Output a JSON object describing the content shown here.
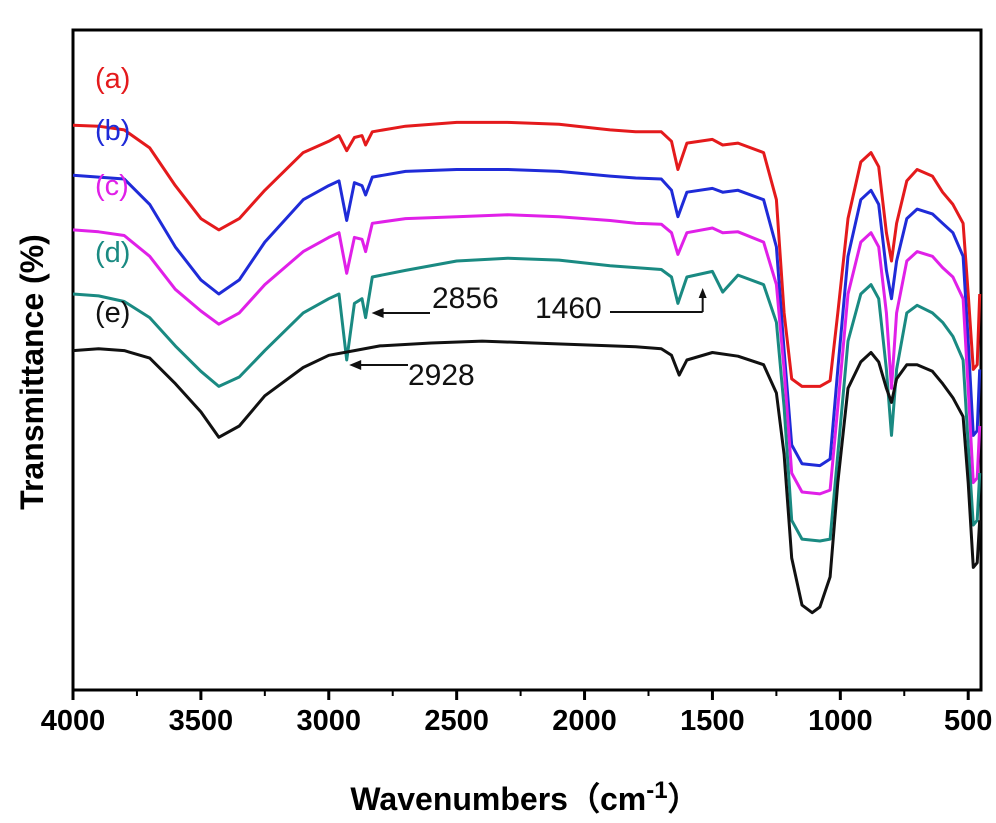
{
  "chart_data": {
    "type": "line",
    "title": "",
    "xlabel": "Wavenumbers",
    "xlabel_unit_base": "（cm",
    "xlabel_unit_exp": "-1",
    "xlabel_unit_close": "）",
    "ylabel": "Transmittance (%)",
    "xlim": [
      4000,
      450
    ],
    "x_reversed": true,
    "y_ticks_shown": false,
    "grid": false,
    "x_ticks": [
      {
        "value": 4000,
        "label": "4000"
      },
      {
        "value": 3500,
        "label": "3500"
      },
      {
        "value": 3000,
        "label": "3000"
      },
      {
        "value": 2500,
        "label": "2500"
      },
      {
        "value": 2000,
        "label": "2000"
      },
      {
        "value": 1500,
        "label": "1500"
      },
      {
        "value": 1000,
        "label": "1000"
      },
      {
        "value": 500,
        "label": "500"
      }
    ],
    "series": [
      {
        "name": "(a)",
        "color": "#e41a1c",
        "points": [
          [
            4000,
            101
          ],
          [
            3900,
            102
          ],
          [
            3800,
            106
          ],
          [
            3700,
            125
          ],
          [
            3600,
            165
          ],
          [
            3500,
            200
          ],
          [
            3430,
            212
          ],
          [
            3350,
            200
          ],
          [
            3250,
            170
          ],
          [
            3100,
            130
          ],
          [
            3000,
            118
          ],
          [
            2960,
            112
          ],
          [
            2930,
            128
          ],
          [
            2900,
            114
          ],
          [
            2870,
            112
          ],
          [
            2856,
            122
          ],
          [
            2830,
            108
          ],
          [
            2700,
            102
          ],
          [
            2500,
            98
          ],
          [
            2300,
            98
          ],
          [
            2100,
            100
          ],
          [
            1900,
            106
          ],
          [
            1800,
            108
          ],
          [
            1700,
            108
          ],
          [
            1660,
            118
          ],
          [
            1635,
            148
          ],
          [
            1600,
            120
          ],
          [
            1500,
            116
          ],
          [
            1460,
            122
          ],
          [
            1400,
            120
          ],
          [
            1300,
            130
          ],
          [
            1250,
            180
          ],
          [
            1220,
            300
          ],
          [
            1190,
            370
          ],
          [
            1150,
            378
          ],
          [
            1080,
            378
          ],
          [
            1040,
            372
          ],
          [
            1010,
            300
          ],
          [
            970,
            200
          ],
          [
            920,
            140
          ],
          [
            880,
            130
          ],
          [
            850,
            145
          ],
          [
            820,
            215
          ],
          [
            800,
            245
          ],
          [
            780,
            205
          ],
          [
            740,
            160
          ],
          [
            700,
            148
          ],
          [
            640,
            155
          ],
          [
            600,
            172
          ],
          [
            560,
            185
          ],
          [
            520,
            205
          ],
          [
            500,
            280
          ],
          [
            480,
            360
          ],
          [
            465,
            355
          ],
          [
            455,
            280
          ]
        ]
      },
      {
        "name": "(b)",
        "color": "#1f2bd8",
        "points": [
          [
            4000,
            154
          ],
          [
            3900,
            156
          ],
          [
            3800,
            158
          ],
          [
            3700,
            185
          ],
          [
            3600,
            230
          ],
          [
            3500,
            265
          ],
          [
            3430,
            280
          ],
          [
            3350,
            265
          ],
          [
            3250,
            225
          ],
          [
            3100,
            180
          ],
          [
            3000,
            165
          ],
          [
            2960,
            160
          ],
          [
            2930,
            202
          ],
          [
            2900,
            162
          ],
          [
            2870,
            165
          ],
          [
            2856,
            175
          ],
          [
            2830,
            156
          ],
          [
            2700,
            150
          ],
          [
            2500,
            148
          ],
          [
            2300,
            148
          ],
          [
            2100,
            150
          ],
          [
            1900,
            155
          ],
          [
            1800,
            157
          ],
          [
            1700,
            158
          ],
          [
            1660,
            170
          ],
          [
            1635,
            198
          ],
          [
            1600,
            172
          ],
          [
            1500,
            168
          ],
          [
            1460,
            172
          ],
          [
            1400,
            170
          ],
          [
            1300,
            180
          ],
          [
            1250,
            230
          ],
          [
            1220,
            340
          ],
          [
            1190,
            440
          ],
          [
            1150,
            460
          ],
          [
            1080,
            462
          ],
          [
            1040,
            455
          ],
          [
            1010,
            360
          ],
          [
            970,
            240
          ],
          [
            920,
            180
          ],
          [
            880,
            170
          ],
          [
            850,
            185
          ],
          [
            820,
            255
          ],
          [
            800,
            285
          ],
          [
            780,
            245
          ],
          [
            740,
            200
          ],
          [
            700,
            190
          ],
          [
            640,
            195
          ],
          [
            600,
            205
          ],
          [
            560,
            215
          ],
          [
            520,
            240
          ],
          [
            500,
            330
          ],
          [
            480,
            430
          ],
          [
            465,
            425
          ],
          [
            455,
            360
          ]
        ]
      },
      {
        "name": "(c)",
        "color": "#e020e8",
        "points": [
          [
            4000,
            212
          ],
          [
            3900,
            214
          ],
          [
            3800,
            218
          ],
          [
            3700,
            240
          ],
          [
            3600,
            275
          ],
          [
            3500,
            298
          ],
          [
            3430,
            312
          ],
          [
            3350,
            300
          ],
          [
            3250,
            270
          ],
          [
            3100,
            235
          ],
          [
            3000,
            220
          ],
          [
            2960,
            215
          ],
          [
            2930,
            258
          ],
          [
            2900,
            220
          ],
          [
            2870,
            222
          ],
          [
            2856,
            235
          ],
          [
            2830,
            205
          ],
          [
            2700,
            200
          ],
          [
            2500,
            198
          ],
          [
            2300,
            196
          ],
          [
            2100,
            198
          ],
          [
            1900,
            202
          ],
          [
            1800,
            205
          ],
          [
            1700,
            206
          ],
          [
            1660,
            215
          ],
          [
            1635,
            238
          ],
          [
            1600,
            215
          ],
          [
            1500,
            210
          ],
          [
            1460,
            215
          ],
          [
            1400,
            214
          ],
          [
            1300,
            225
          ],
          [
            1250,
            270
          ],
          [
            1220,
            360
          ],
          [
            1190,
            470
          ],
          [
            1150,
            490
          ],
          [
            1080,
            492
          ],
          [
            1040,
            488
          ],
          [
            1010,
            400
          ],
          [
            970,
            280
          ],
          [
            920,
            225
          ],
          [
            880,
            215
          ],
          [
            850,
            230
          ],
          [
            820,
            300
          ],
          [
            800,
            380
          ],
          [
            780,
            300
          ],
          [
            740,
            245
          ],
          [
            700,
            235
          ],
          [
            640,
            240
          ],
          [
            600,
            252
          ],
          [
            560,
            262
          ],
          [
            520,
            285
          ],
          [
            500,
            380
          ],
          [
            480,
            480
          ],
          [
            465,
            475
          ],
          [
            455,
            420
          ]
        ]
      },
      {
        "name": "(d)",
        "color": "#1a8a82",
        "points": [
          [
            4000,
            280
          ],
          [
            3900,
            282
          ],
          [
            3800,
            288
          ],
          [
            3700,
            305
          ],
          [
            3600,
            335
          ],
          [
            3500,
            362
          ],
          [
            3430,
            378
          ],
          [
            3350,
            368
          ],
          [
            3250,
            340
          ],
          [
            3100,
            300
          ],
          [
            3000,
            285
          ],
          [
            2960,
            280
          ],
          [
            2930,
            350
          ],
          [
            2900,
            290
          ],
          [
            2870,
            285
          ],
          [
            2856,
            305
          ],
          [
            2830,
            262
          ],
          [
            2700,
            255
          ],
          [
            2500,
            245
          ],
          [
            2300,
            242
          ],
          [
            2100,
            244
          ],
          [
            1900,
            250
          ],
          [
            1800,
            252
          ],
          [
            1700,
            254
          ],
          [
            1660,
            262
          ],
          [
            1635,
            290
          ],
          [
            1600,
            262
          ],
          [
            1500,
            256
          ],
          [
            1460,
            278
          ],
          [
            1400,
            260
          ],
          [
            1300,
            270
          ],
          [
            1250,
            310
          ],
          [
            1220,
            400
          ],
          [
            1190,
            520
          ],
          [
            1150,
            540
          ],
          [
            1080,
            542
          ],
          [
            1040,
            540
          ],
          [
            1010,
            450
          ],
          [
            970,
            330
          ],
          [
            920,
            280
          ],
          [
            880,
            270
          ],
          [
            850,
            285
          ],
          [
            820,
            360
          ],
          [
            800,
            430
          ],
          [
            780,
            360
          ],
          [
            740,
            300
          ],
          [
            700,
            292
          ],
          [
            640,
            300
          ],
          [
            600,
            310
          ],
          [
            560,
            325
          ],
          [
            520,
            350
          ],
          [
            500,
            440
          ],
          [
            480,
            525
          ],
          [
            465,
            520
          ],
          [
            455,
            470
          ]
        ]
      },
      {
        "name": "(e)",
        "color": "#111111",
        "points": [
          [
            4000,
            340
          ],
          [
            3900,
            338
          ],
          [
            3800,
            340
          ],
          [
            3700,
            348
          ],
          [
            3600,
            375
          ],
          [
            3500,
            405
          ],
          [
            3430,
            432
          ],
          [
            3350,
            420
          ],
          [
            3250,
            388
          ],
          [
            3100,
            358
          ],
          [
            3000,
            345
          ],
          [
            2900,
            340
          ],
          [
            2800,
            335
          ],
          [
            2600,
            332
          ],
          [
            2400,
            330
          ],
          [
            2200,
            332
          ],
          [
            2000,
            334
          ],
          [
            1800,
            336
          ],
          [
            1700,
            338
          ],
          [
            1660,
            345
          ],
          [
            1630,
            366
          ],
          [
            1600,
            350
          ],
          [
            1500,
            342
          ],
          [
            1400,
            346
          ],
          [
            1300,
            355
          ],
          [
            1250,
            385
          ],
          [
            1220,
            450
          ],
          [
            1190,
            560
          ],
          [
            1150,
            610
          ],
          [
            1110,
            618
          ],
          [
            1080,
            612
          ],
          [
            1040,
            580
          ],
          [
            1010,
            480
          ],
          [
            970,
            380
          ],
          [
            920,
            352
          ],
          [
            880,
            342
          ],
          [
            850,
            352
          ],
          [
            820,
            380
          ],
          [
            800,
            395
          ],
          [
            780,
            370
          ],
          [
            740,
            355
          ],
          [
            700,
            355
          ],
          [
            640,
            362
          ],
          [
            600,
            375
          ],
          [
            560,
            390
          ],
          [
            520,
            410
          ],
          [
            500,
            480
          ],
          [
            480,
            570
          ],
          [
            465,
            565
          ],
          [
            455,
            520
          ]
        ]
      }
    ],
    "annotations": [
      {
        "label": "2856",
        "target_x": 2856,
        "arrow_direction": "left"
      },
      {
        "label": "2928",
        "target_x": 2928,
        "arrow_direction": "left"
      },
      {
        "label": "1460",
        "target_x": 1460,
        "arrow_direction": "up"
      }
    ]
  }
}
